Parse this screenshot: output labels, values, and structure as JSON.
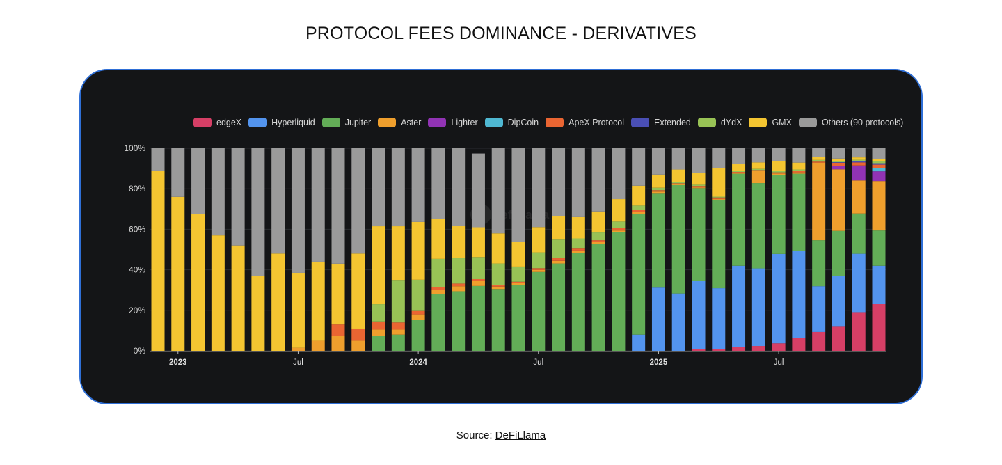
{
  "title": "PROTOCOL FEES DOMINANCE - DERIVATIVES",
  "source": {
    "label": "Source:",
    "link_text": "DeFiLlama"
  },
  "watermark": "DefiLlama",
  "chart_data": {
    "type": "bar",
    "stacked": true,
    "normalized_percent": true,
    "title": "",
    "xlabel": "",
    "ylabel": "",
    "ylim": [
      0,
      100
    ],
    "yticks": [
      "0%",
      "20%",
      "40%",
      "60%",
      "80%",
      "100%"
    ],
    "xtick_labels": [
      {
        "category": "2023-01",
        "label": "2023",
        "bold": true
      },
      {
        "category": "2023-07",
        "label": "Jul",
        "bold": false
      },
      {
        "category": "2024-01",
        "label": "2024",
        "bold": true
      },
      {
        "category": "2024-07",
        "label": "Jul",
        "bold": false
      },
      {
        "category": "2025-01",
        "label": "2025",
        "bold": true
      },
      {
        "category": "2025-07",
        "label": "Jul",
        "bold": false
      }
    ],
    "grid": "horizontal",
    "legend_position": "top",
    "categories": [
      "2022-12",
      "2023-01",
      "2023-02",
      "2023-03",
      "2023-04",
      "2023-05",
      "2023-06",
      "2023-07",
      "2023-08",
      "2023-09",
      "2023-10",
      "2023-11",
      "2023-12",
      "2024-01",
      "2024-02",
      "2024-03",
      "2024-04",
      "2024-05",
      "2024-06",
      "2024-07",
      "2024-08",
      "2024-09",
      "2024-10",
      "2024-11",
      "2024-12",
      "2025-01",
      "2025-02",
      "2025-03",
      "2025-04",
      "2025-05",
      "2025-06",
      "2025-07",
      "2025-08",
      "2025-09",
      "2025-10",
      "2025-11",
      "2025-12"
    ],
    "series": [
      {
        "name": "edgeX",
        "color": "#d63f66",
        "values": [
          0,
          0,
          0,
          0,
          0,
          0,
          0,
          0,
          0,
          0,
          0,
          0,
          0,
          0,
          0,
          0,
          0,
          0,
          0,
          0,
          0,
          0,
          0,
          0,
          0,
          0,
          0,
          0.8,
          0.9,
          1.8,
          2.4,
          3.7,
          6.4,
          9.3,
          11.9,
          19.1,
          23.1
        ]
      },
      {
        "name": "Hyperliquid",
        "color": "#5394ee",
        "values": [
          0,
          0,
          0,
          0,
          0,
          0,
          0,
          0,
          0,
          0,
          0,
          0,
          0,
          0,
          0,
          0,
          0,
          0,
          0,
          0,
          0,
          0,
          0,
          0,
          8,
          31.2,
          28.3,
          33.8,
          30.0,
          40.2,
          38.3,
          44.1,
          42.9,
          22.6,
          24.9,
          28.8,
          18.9
        ]
      },
      {
        "name": "Jupiter",
        "color": "#63ad57",
        "values": [
          0,
          0,
          0,
          0,
          0,
          0,
          0,
          0,
          0,
          0,
          0,
          7.5,
          8,
          15.4,
          27.9,
          29.4,
          32,
          30.5,
          32.3,
          38.9,
          43.1,
          48.3,
          52.7,
          58.7,
          59.7,
          46.7,
          53.5,
          45.7,
          43.7,
          45.4,
          42.1,
          38.9,
          38.1,
          22.7,
          22.4,
          19.9,
          17.4
        ]
      },
      {
        "name": "Aster",
        "color": "#ef9f2d",
        "values": [
          0,
          0,
          0,
          0,
          0,
          0,
          0,
          1.5,
          5,
          7.5,
          5,
          3,
          2.5,
          2.6,
          2.3,
          2.5,
          2.6,
          1.2,
          1.2,
          1.0,
          1.3,
          1.2,
          1.0,
          0.7,
          0.8,
          0.7,
          0.4,
          0.4,
          0.4,
          0.4,
          5.9,
          0.8,
          0.7,
          38.3,
          30.4,
          16.3,
          24.4
        ]
      },
      {
        "name": "Lighter",
        "color": "#9133b4",
        "values": [
          0,
          0,
          0,
          0,
          0,
          0,
          0,
          0,
          0,
          0,
          0,
          0,
          0,
          0,
          0,
          0,
          0,
          0,
          0,
          0,
          0,
          0,
          0,
          0,
          0,
          0,
          0,
          0,
          0,
          0,
          0,
          0,
          0,
          0,
          1.7,
          7.4,
          4.8
        ]
      },
      {
        "name": "DipCoin",
        "color": "#4fb8d2",
        "values": [
          0,
          0,
          0,
          0,
          0,
          0,
          0,
          0,
          0,
          0,
          0,
          0,
          0,
          0,
          0,
          0,
          0,
          0,
          0,
          0,
          0,
          0,
          0,
          0,
          0,
          0,
          0,
          0,
          0,
          0,
          0,
          0,
          0,
          0,
          0,
          0,
          1.7
        ]
      },
      {
        "name": "ApeX Protocol",
        "color": "#ea6532",
        "values": [
          0,
          0,
          0,
          0,
          0,
          0,
          0,
          0,
          0,
          5.5,
          6,
          4,
          3.5,
          1.7,
          1.2,
          1.3,
          0.8,
          0.7,
          0.6,
          0.9,
          1.3,
          1.3,
          0.9,
          1.1,
          1.0,
          0.7,
          0.5,
          0.7,
          0.7,
          0.5,
          0.5,
          0.6,
          0.8,
          0.5,
          1.5,
          1.5,
          1.6
        ]
      },
      {
        "name": "Extended",
        "color": "#4a4fb5",
        "values": [
          0,
          0,
          0,
          0,
          0,
          0,
          0,
          0,
          0,
          0,
          0,
          0,
          0,
          0,
          0,
          0,
          0,
          0,
          0,
          0,
          0,
          0,
          0,
          0,
          0,
          0,
          0,
          0,
          0,
          0,
          0,
          0,
          0,
          0,
          0.3,
          0.8,
          0.7
        ]
      },
      {
        "name": "dYdX",
        "color": "#98c255",
        "values": [
          0,
          0,
          0,
          0,
          0,
          0,
          0,
          0,
          0,
          0,
          0,
          8.5,
          21,
          15.4,
          14,
          12.5,
          10.9,
          10.7,
          7.5,
          7.8,
          9.2,
          4.7,
          3.8,
          3.3,
          2.2,
          1.2,
          0.7,
          0.6,
          0.4,
          0.6,
          0.6,
          0.8,
          0.6,
          0.8,
          0.4,
          0.5,
          0.9
        ]
      },
      {
        "name": "GMX",
        "color": "#f4c531",
        "values": [
          89,
          76,
          67.5,
          57,
          52,
          37,
          48,
          37,
          39,
          30,
          37,
          38.5,
          26.5,
          28.5,
          19.7,
          16,
          14.7,
          14.9,
          12.2,
          12.5,
          11.6,
          10.5,
          10.4,
          11.1,
          9.8,
          6.5,
          6.1,
          5.8,
          14.2,
          3.2,
          3.2,
          4.8,
          3.4,
          1.5,
          1.4,
          1.2,
          1.1
        ]
      },
      {
        "name": "Others (90 protocols)",
        "color": "#9a9a9a",
        "values": [
          11,
          24,
          32.5,
          43,
          48,
          63,
          52,
          61.5,
          56,
          57,
          52,
          38.5,
          38.5,
          36.4,
          34.9,
          38.3,
          36.4,
          42,
          46.2,
          38.9,
          33.5,
          34,
          31.2,
          25.1,
          18.5,
          13,
          10.5,
          12.2,
          9.7,
          7.9,
          7,
          6.3,
          7.1,
          4.3,
          5.1,
          4.5,
          5.4
        ]
      }
    ]
  }
}
